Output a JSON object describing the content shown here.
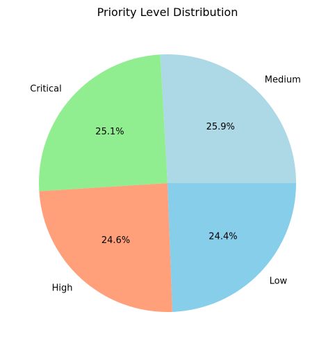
{
  "chart_data": {
    "type": "pie",
    "title": "Priority Level Distribution",
    "categories": [
      "Medium",
      "Critical",
      "High",
      "Low"
    ],
    "values": [
      25.9,
      25.1,
      24.6,
      24.4
    ],
    "value_labels": [
      "25.9%",
      "25.1%",
      "24.6%",
      "24.4%"
    ],
    "colors": [
      "#add8e6",
      "#90ee90",
      "#ffa07a",
      "#87ceeb"
    ],
    "start_angle_deg": 0,
    "direction": "counterclockwise",
    "legend": "none"
  }
}
